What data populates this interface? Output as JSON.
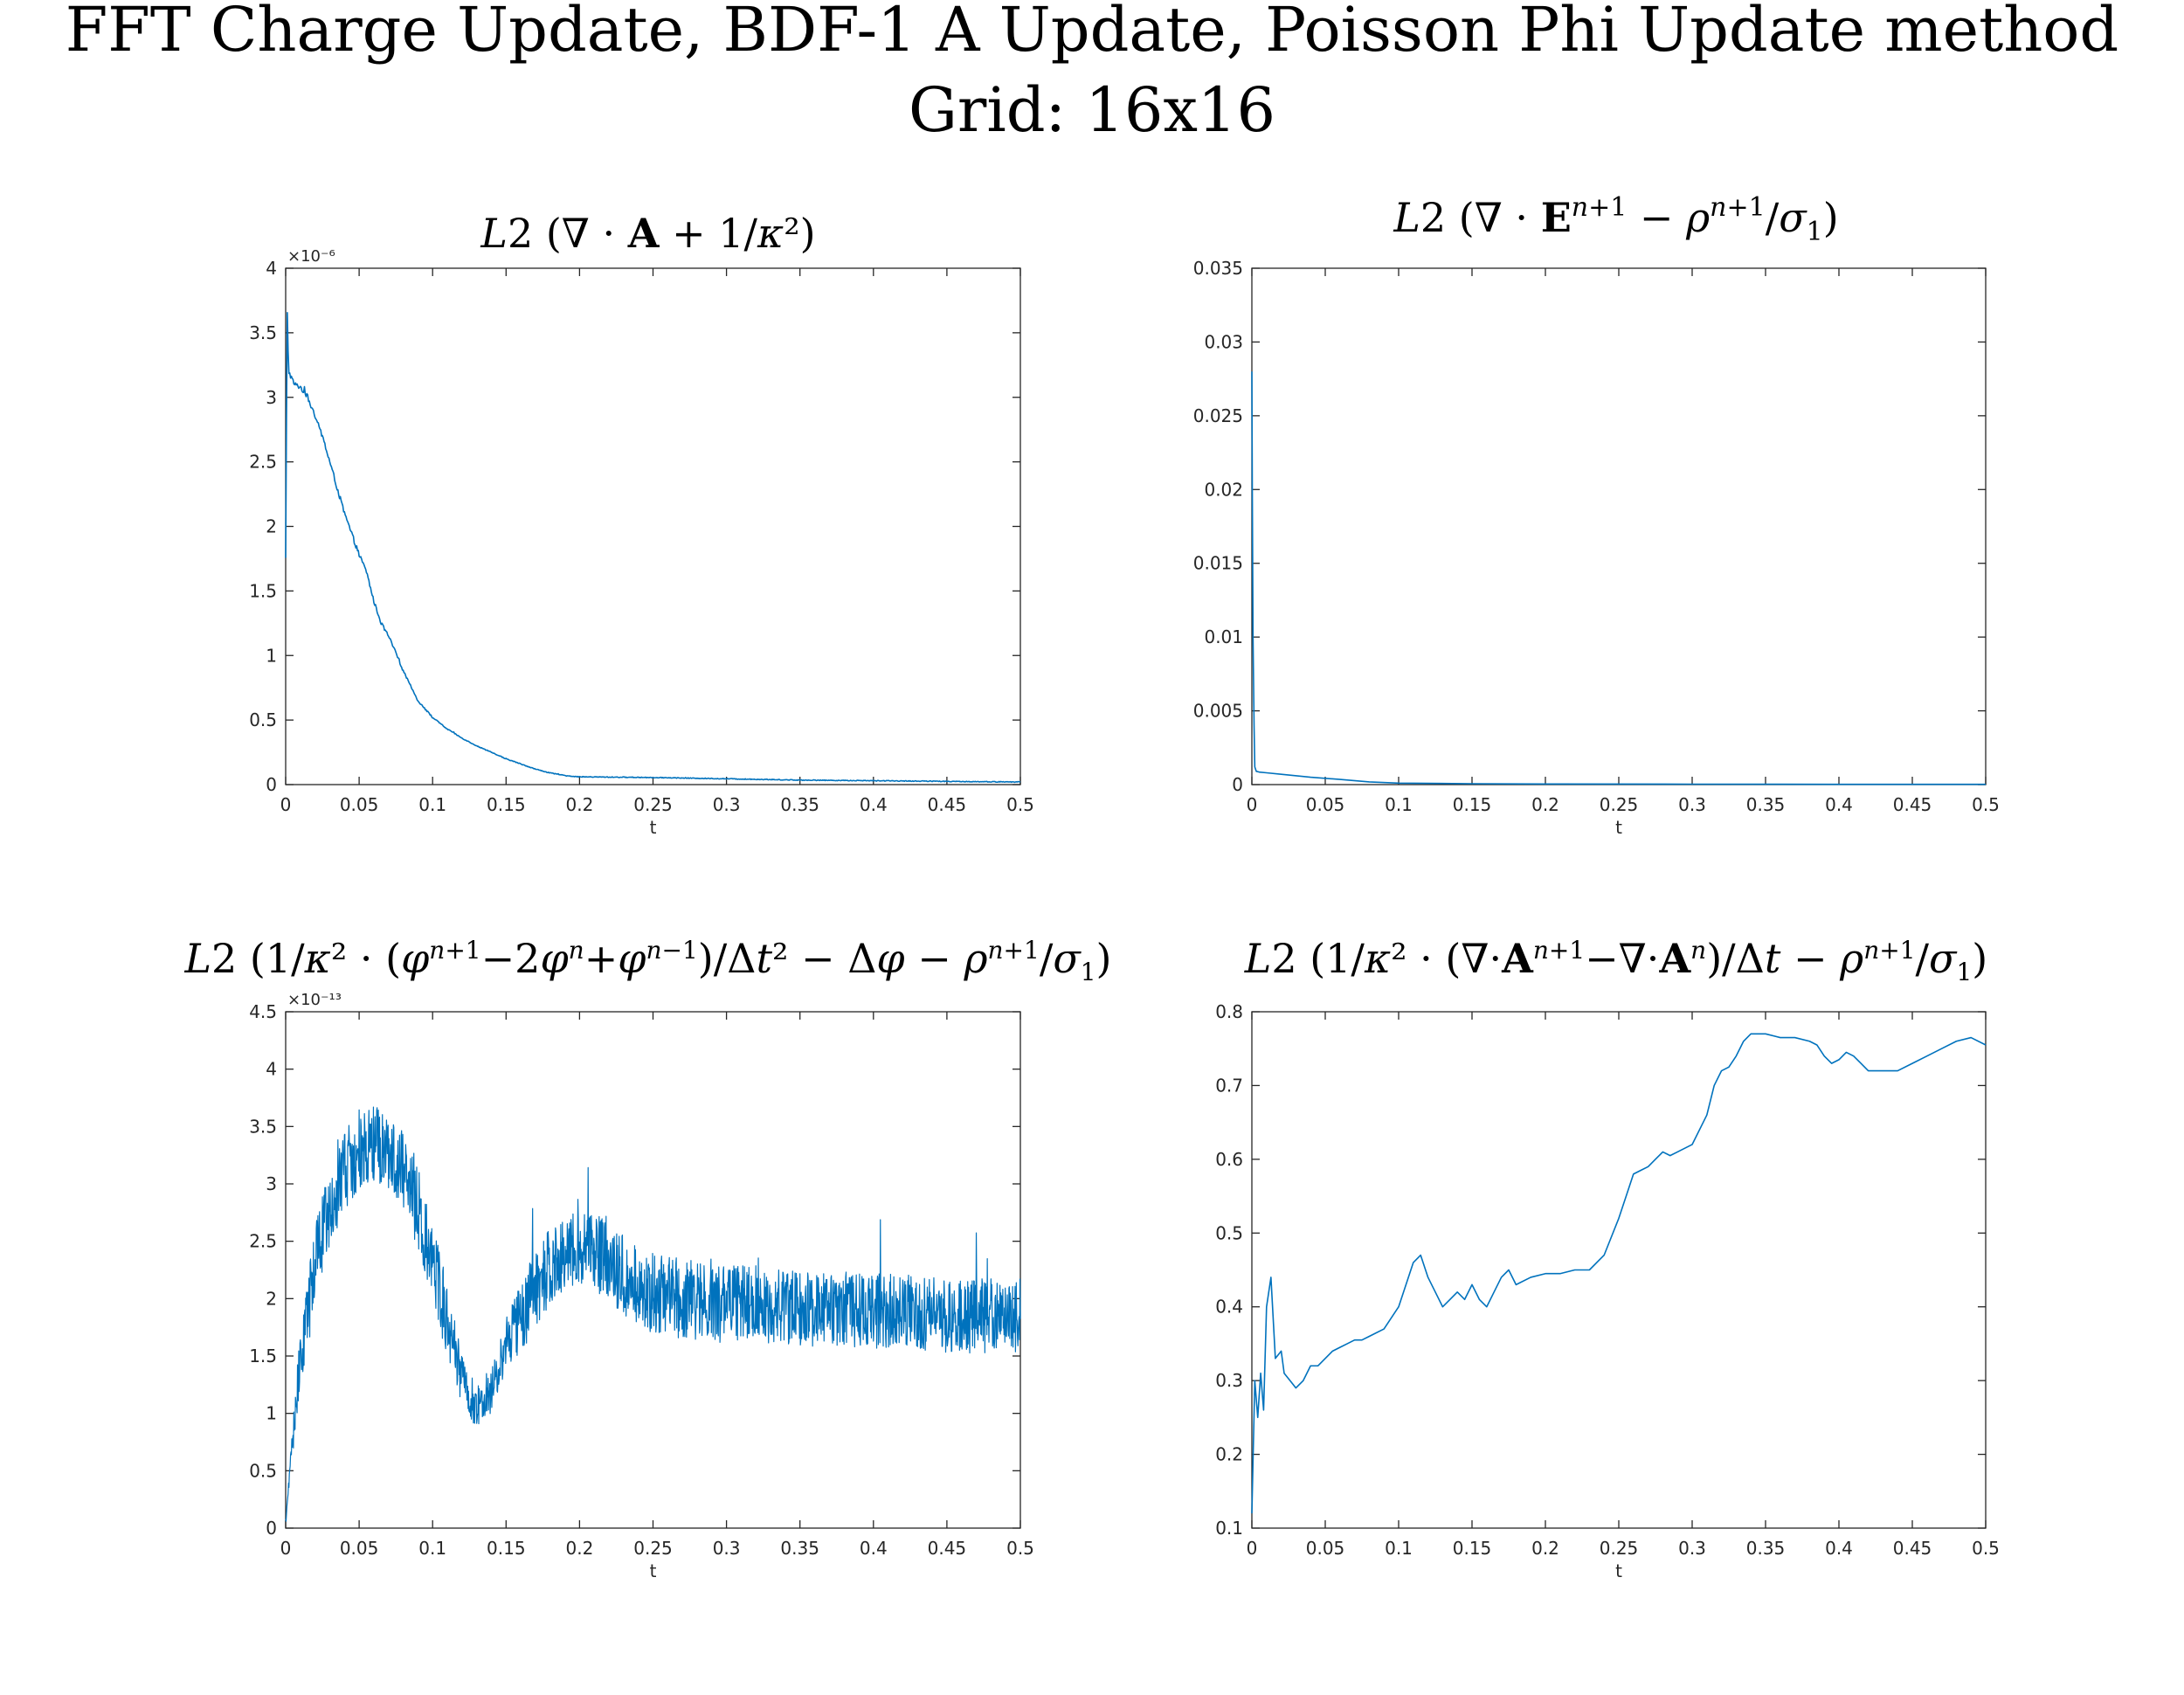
{
  "figure": {
    "title_line1": "FFT Charge Update, BDF-1 A Update, Poisson Phi Update method",
    "title_line2": "Grid: 16x16"
  },
  "series_color": "#0072bd",
  "chart_data": [
    {
      "type": "line",
      "title": "L2 (∇ · A + 1/κ²)",
      "xlabel": "t",
      "ylabel": "",
      "xlim": [
        0,
        0.5
      ],
      "ylim": [
        0,
        4
      ],
      "y_exponent": "×10⁻⁶",
      "xticks": [
        "0",
        "0.05",
        "0.1",
        "0.15",
        "0.2",
        "0.25",
        "0.3",
        "0.35",
        "0.4",
        "0.45",
        "0.5"
      ],
      "yticks": [
        "0",
        "0.5",
        "1",
        "1.5",
        "2",
        "2.5",
        "3",
        "3.5",
        "4"
      ],
      "noise": 0.02,
      "x": [
        0,
        0.001,
        0.002,
        0.004,
        0.006,
        0.01,
        0.015,
        0.02,
        0.025,
        0.03,
        0.04,
        0.05,
        0.055,
        0.06,
        0.065,
        0.07,
        0.075,
        0.08,
        0.09,
        0.1,
        0.11,
        0.12,
        0.13,
        0.14,
        0.15,
        0.16,
        0.17,
        0.18,
        0.19,
        0.2,
        0.25,
        0.3,
        0.35,
        0.4,
        0.45,
        0.5
      ],
      "y": [
        1.75,
        3.7,
        3.2,
        3.15,
        3.1,
        3.08,
        3.0,
        2.85,
        2.7,
        2.5,
        2.1,
        1.78,
        1.65,
        1.42,
        1.25,
        1.15,
        1.02,
        0.88,
        0.65,
        0.52,
        0.43,
        0.36,
        0.3,
        0.25,
        0.2,
        0.16,
        0.12,
        0.09,
        0.07,
        0.06,
        0.055,
        0.045,
        0.035,
        0.03,
        0.025,
        0.02
      ]
    },
    {
      "type": "line",
      "title": "L2 (∇ · Eⁿ⁺¹ − ρⁿ⁺¹/σ₁)",
      "xlabel": "t",
      "ylabel": "",
      "xlim": [
        0,
        0.5
      ],
      "ylim": [
        0,
        0.035
      ],
      "y_exponent": "",
      "xticks": [
        "0",
        "0.05",
        "0.1",
        "0.15",
        "0.2",
        "0.25",
        "0.3",
        "0.35",
        "0.4",
        "0.45",
        "0.5"
      ],
      "yticks": [
        "0",
        "0.005",
        "0.01",
        "0.015",
        "0.02",
        "0.025",
        "0.03",
        "0.035"
      ],
      "noise": 0,
      "x": [
        0,
        0.0003,
        0.0008,
        0.0015,
        0.002,
        0.003,
        0.005,
        0.01,
        0.02,
        0.04,
        0.06,
        0.08,
        0.1,
        0.15,
        0.2,
        0.3,
        0.4,
        0.5
      ],
      "y": [
        0.028,
        0.02,
        0.01,
        0.004,
        0.0012,
        0.0009,
        0.00085,
        0.0008,
        0.0007,
        0.0005,
        0.00035,
        0.00018,
        0.0001,
        6e-05,
        4e-05,
        3e-05,
        2e-05,
        2e-05
      ]
    },
    {
      "type": "line",
      "title": "L2 (1/κ² (φⁿ⁺¹ − 2φⁿ + φⁿ⁻¹)/Δt² − Δφ − ρⁿ⁺¹/σ₁)",
      "xlabel": "t",
      "ylabel": "",
      "xlim": [
        0,
        0.5
      ],
      "ylim": [
        0,
        4.5
      ],
      "y_exponent": "×10⁻¹³",
      "xticks": [
        "0",
        "0.05",
        "0.1",
        "0.15",
        "0.2",
        "0.25",
        "0.3",
        "0.35",
        "0.4",
        "0.45",
        "0.5"
      ],
      "yticks": [
        "0",
        "0.5",
        "1",
        "1.5",
        "2",
        "2.5",
        "3",
        "3.5",
        "4",
        "4.5"
      ],
      "noise": 0.35,
      "x": [
        0,
        0.005,
        0.01,
        0.015,
        0.02,
        0.03,
        0.04,
        0.05,
        0.06,
        0.07,
        0.08,
        0.09,
        0.1,
        0.11,
        0.12,
        0.13,
        0.14,
        0.15,
        0.16,
        0.17,
        0.18,
        0.19,
        0.2,
        0.21,
        0.22,
        0.23,
        0.24,
        0.25,
        0.27,
        0.3,
        0.33,
        0.36,
        0.4,
        0.45,
        0.5
      ],
      "y": [
        0.05,
        0.8,
        1.5,
        1.9,
        2.3,
        2.8,
        3.1,
        3.3,
        3.35,
        3.3,
        3.1,
        2.8,
        2.3,
        1.8,
        1.3,
        1.05,
        1.2,
        1.55,
        1.85,
        2.1,
        2.3,
        2.4,
        2.45,
        2.4,
        2.3,
        2.2,
        2.1,
        2.05,
        2.0,
        1.95,
        1.95,
        1.9,
        1.9,
        1.85,
        1.85
      ]
    },
    {
      "type": "line",
      "title": "L2 (1/κ² (∇·Aⁿ⁺¹ − ∇·Aⁿ)/Δt − ρⁿ⁺¹/σ₁)",
      "xlabel": "t",
      "ylabel": "",
      "xlim": [
        0,
        0.5
      ],
      "ylim": [
        0.1,
        0.8
      ],
      "y_exponent": "",
      "xticks": [
        "0",
        "0.05",
        "0.1",
        "0.15",
        "0.2",
        "0.25",
        "0.3",
        "0.35",
        "0.4",
        "0.45",
        "0.5"
      ],
      "yticks": [
        "0.1",
        "0.2",
        "0.3",
        "0.4",
        "0.5",
        "0.6",
        "0.7",
        "0.8"
      ],
      "noise": 0,
      "x": [
        0,
        0.002,
        0.004,
        0.006,
        0.008,
        0.01,
        0.013,
        0.016,
        0.02,
        0.022,
        0.026,
        0.03,
        0.035,
        0.04,
        0.045,
        0.05,
        0.055,
        0.06,
        0.065,
        0.07,
        0.075,
        0.08,
        0.09,
        0.1,
        0.105,
        0.11,
        0.115,
        0.12,
        0.125,
        0.13,
        0.135,
        0.14,
        0.145,
        0.15,
        0.155,
        0.16,
        0.165,
        0.17,
        0.175,
        0.18,
        0.19,
        0.2,
        0.21,
        0.22,
        0.23,
        0.24,
        0.25,
        0.255,
        0.26,
        0.265,
        0.27,
        0.275,
        0.28,
        0.285,
        0.29,
        0.3,
        0.31,
        0.315,
        0.32,
        0.325,
        0.33,
        0.335,
        0.34,
        0.35,
        0.36,
        0.37,
        0.38,
        0.385,
        0.39,
        0.395,
        0.4,
        0.405,
        0.41,
        0.415,
        0.42,
        0.43,
        0.44,
        0.45,
        0.46,
        0.47,
        0.48,
        0.49,
        0.5
      ],
      "y": [
        0.12,
        0.3,
        0.25,
        0.31,
        0.26,
        0.4,
        0.44,
        0.33,
        0.34,
        0.31,
        0.3,
        0.29,
        0.3,
        0.32,
        0.32,
        0.33,
        0.34,
        0.345,
        0.35,
        0.355,
        0.355,
        0.36,
        0.37,
        0.4,
        0.43,
        0.46,
        0.47,
        0.44,
        0.42,
        0.4,
        0.41,
        0.42,
        0.41,
        0.43,
        0.41,
        0.4,
        0.42,
        0.44,
        0.45,
        0.43,
        0.44,
        0.445,
        0.445,
        0.45,
        0.45,
        0.47,
        0.52,
        0.55,
        0.58,
        0.585,
        0.59,
        0.6,
        0.61,
        0.605,
        0.61,
        0.62,
        0.66,
        0.7,
        0.72,
        0.725,
        0.74,
        0.76,
        0.77,
        0.77,
        0.765,
        0.765,
        0.76,
        0.755,
        0.74,
        0.73,
        0.735,
        0.745,
        0.74,
        0.73,
        0.72,
        0.72,
        0.72,
        0.73,
        0.74,
        0.75,
        0.76,
        0.765,
        0.755
      ]
    }
  ]
}
